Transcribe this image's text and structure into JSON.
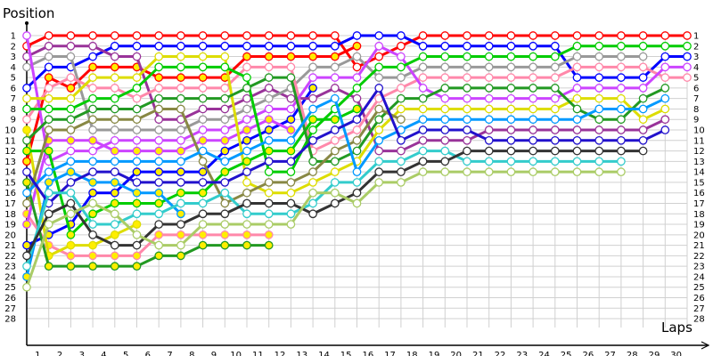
{
  "chart_data": {
    "type": "line",
    "xlabel": "Laps",
    "ylabel": "Position",
    "x_ticks": [
      1,
      2,
      3,
      4,
      5,
      6,
      7,
      8,
      9,
      10,
      11,
      12,
      13,
      14,
      15,
      16,
      17,
      18,
      19,
      20,
      21,
      22,
      23,
      24,
      25,
      26,
      27,
      28,
      29,
      30
    ],
    "y_ticks": [
      1,
      2,
      3,
      4,
      5,
      6,
      7,
      8,
      9,
      10,
      11,
      12,
      13,
      14,
      15,
      16,
      17,
      18,
      19,
      20,
      21,
      22,
      23,
      24,
      25,
      26,
      27,
      28
    ],
    "xlim": [
      0,
      30
    ],
    "ylim": [
      1,
      28
    ],
    "y_inverted": true,
    "grid": true,
    "pit_marker_color": "#ffee00",
    "series": [
      {
        "color": "#ff0000",
        "filled": false,
        "positions": [
          2,
          1,
          1,
          1,
          1,
          1,
          1,
          1,
          1,
          1,
          1,
          1,
          1,
          1,
          1,
          4,
          3,
          2,
          1,
          1,
          1,
          1,
          1,
          1,
          1,
          1,
          1,
          1,
          1,
          1,
          1
        ]
      },
      {
        "color": "#ff0000",
        "filled": true,
        "positions": [
          13,
          5,
          6,
          4,
          4,
          4,
          5,
          5,
          5,
          5,
          3,
          3,
          3,
          3,
          3,
          2
        ]
      },
      {
        "color": "#0000ff",
        "filled": false,
        "positions": [
          6,
          4,
          4,
          3,
          2,
          2,
          2,
          2,
          2,
          2,
          2,
          2,
          2,
          2,
          2,
          1,
          1,
          1,
          2,
          2,
          2,
          2,
          2,
          2,
          2,
          5,
          5,
          5,
          5,
          3,
          3
        ]
      },
      {
        "color": "#0000ff",
        "filled": true,
        "positions": [
          21,
          20,
          19,
          16,
          16,
          14,
          14,
          14,
          14,
          12,
          11,
          10,
          9,
          6
        ]
      },
      {
        "color": "#993399",
        "filled": false,
        "positions": [
          3,
          2,
          2,
          2,
          3,
          3,
          9,
          9,
          8,
          8,
          7,
          6,
          7,
          7,
          6,
          7,
          12,
          12,
          11,
          11,
          11,
          10,
          10,
          10,
          10,
          10,
          10,
          10,
          10,
          9
        ]
      },
      {
        "color": "#999999",
        "filled": false,
        "positions": [
          4,
          3,
          3,
          10,
          10,
          10,
          10,
          10,
          9,
          9,
          8,
          7,
          6,
          4,
          4,
          3,
          5,
          5,
          4,
          4,
          4,
          4,
          4,
          4,
          4,
          3,
          3,
          3,
          3
        ]
      },
      {
        "color": "#ff88aa",
        "filled": false,
        "positions": [
          9,
          6,
          5,
          6,
          6,
          7,
          6,
          6,
          6,
          6,
          4,
          4,
          4,
          12,
          11,
          10,
          7,
          6,
          5,
          5,
          5,
          5,
          5,
          5,
          5,
          4,
          4,
          4,
          4,
          5,
          5
        ]
      },
      {
        "color": "#ff88aa",
        "filled": true,
        "positions": [
          18,
          21,
          22,
          22,
          22,
          22,
          20,
          20,
          20,
          20,
          20,
          20
        ]
      },
      {
        "color": "#cc44ff",
        "filled": false,
        "positions": [
          1,
          13,
          12,
          12,
          11,
          11,
          11,
          11,
          10,
          10,
          9,
          8,
          8,
          5,
          5,
          5,
          2,
          3,
          6,
          7,
          7,
          7,
          7,
          7,
          7,
          6,
          6,
          6,
          6,
          4,
          4
        ]
      },
      {
        "color": "#cc44ff",
        "filled": true,
        "positions": [
          19,
          11,
          11,
          11,
          12,
          12,
          12,
          12,
          11,
          11,
          10,
          9,
          10
        ]
      },
      {
        "color": "#dddd00",
        "filled": false,
        "positions": [
          7,
          7,
          7,
          5,
          5,
          5,
          3,
          3,
          3,
          3,
          15,
          16,
          16,
          15,
          14,
          13,
          10,
          8,
          8,
          8,
          8,
          8,
          8,
          8,
          8,
          7,
          7,
          7,
          9,
          8
        ]
      },
      {
        "color": "#dddd00",
        "filled": true,
        "positions": [
          10,
          22,
          21,
          21,
          20,
          19
        ]
      },
      {
        "color": "#00cc00",
        "filled": false,
        "positions": [
          8,
          8,
          8,
          7,
          7,
          6,
          4,
          4,
          4,
          4,
          5,
          14,
          14,
          10,
          8,
          6,
          4,
          4,
          3,
          3,
          3,
          3,
          3,
          3,
          3,
          2,
          2,
          2,
          2,
          2,
          2
        ]
      },
      {
        "color": "#00cc00",
        "filled": true,
        "positions": [
          12,
          12,
          20,
          18,
          17,
          17,
          17,
          16,
          16,
          14,
          13,
          12,
          12,
          9,
          9,
          8
        ]
      },
      {
        "color": "#229922",
        "filled": false,
        "positions": [
          11,
          9,
          9,
          8,
          8,
          8,
          7,
          7,
          7,
          7,
          6,
          5,
          5,
          13,
          13,
          12,
          9,
          7,
          7,
          6,
          6,
          6,
          6,
          6,
          6,
          8,
          9,
          9,
          7,
          6
        ]
      },
      {
        "color": "#229922",
        "filled": true,
        "positions": [
          15,
          23,
          23,
          23,
          23,
          23,
          22,
          22,
          21,
          21,
          21,
          21
        ]
      },
      {
        "color": "#888844",
        "filled": false,
        "positions": [
          17,
          10,
          10,
          9,
          9,
          9,
          8,
          8,
          13,
          17,
          16,
          15,
          15,
          14,
          12,
          11,
          8,
          9
        ]
      },
      {
        "color": "#0099ff",
        "filled": false,
        "positions": [
          16,
          14,
          13,
          13,
          13,
          13,
          13,
          13,
          12,
          13,
          12,
          11,
          11,
          8,
          7,
          14,
          11,
          10,
          9,
          9,
          9,
          9,
          9,
          9,
          9,
          9,
          8,
          8,
          8,
          7
        ]
      },
      {
        "color": "#0099ff",
        "filled": true,
        "positions": [
          24,
          15,
          14,
          15,
          15,
          16,
          16,
          18
        ]
      },
      {
        "color": "#2211cc",
        "filled": false,
        "positions": [
          14,
          17,
          15,
          14,
          14,
          15,
          15,
          15,
          15,
          15,
          14,
          13,
          13,
          11,
          10,
          9,
          6,
          11,
          10,
          10,
          10,
          11,
          11,
          11,
          11,
          11,
          11,
          11,
          11,
          10
        ]
      },
      {
        "color": "#33cccc",
        "filled": false,
        "positions": [
          23,
          16,
          16,
          19,
          19,
          18,
          18,
          17,
          17,
          16,
          18,
          18,
          18,
          17,
          15,
          15,
          13,
          13,
          12,
          12,
          13,
          13,
          13,
          13,
          13,
          13,
          13,
          13
        ]
      },
      {
        "color": "#333333",
        "filled": false,
        "positions": [
          22,
          18,
          17,
          20,
          21,
          21,
          19,
          19,
          18,
          18,
          17,
          17,
          17,
          18,
          17,
          16,
          14,
          14,
          13,
          13,
          12,
          12,
          12,
          12,
          12,
          12,
          12,
          12,
          12
        ]
      },
      {
        "color": "#aacc66",
        "filled": false,
        "positions": [
          25,
          19,
          18,
          17,
          18,
          20,
          21,
          21,
          19,
          19,
          19,
          19,
          19,
          16,
          16,
          17,
          15,
          15,
          14,
          14,
          14,
          14,
          14,
          14,
          14,
          14,
          14,
          14
        ]
      }
    ]
  }
}
